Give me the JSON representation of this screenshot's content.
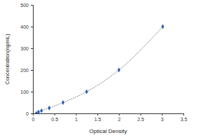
{
  "chart_data": {
    "type": "scatter",
    "x_label": "Optical Density",
    "y_label": "Concentration(ng/mL)",
    "x": [
      0.08,
      0.13,
      0.2,
      0.38,
      0.7,
      1.25,
      2.0,
      3.02
    ],
    "values": [
      0,
      6.25,
      12.5,
      25,
      50,
      100,
      200,
      400
    ],
    "color": "#2f5fb3",
    "marker": "diamond",
    "line_style": "dotted",
    "xlim": [
      0,
      3.5
    ],
    "xticks": [
      0,
      0.5,
      1,
      1.5,
      2,
      2.5,
      3,
      3.5
    ],
    "ylim": [
      0,
      500
    ],
    "yticks": [
      0,
      100,
      200,
      300,
      400,
      500
    ],
    "grid": false
  }
}
